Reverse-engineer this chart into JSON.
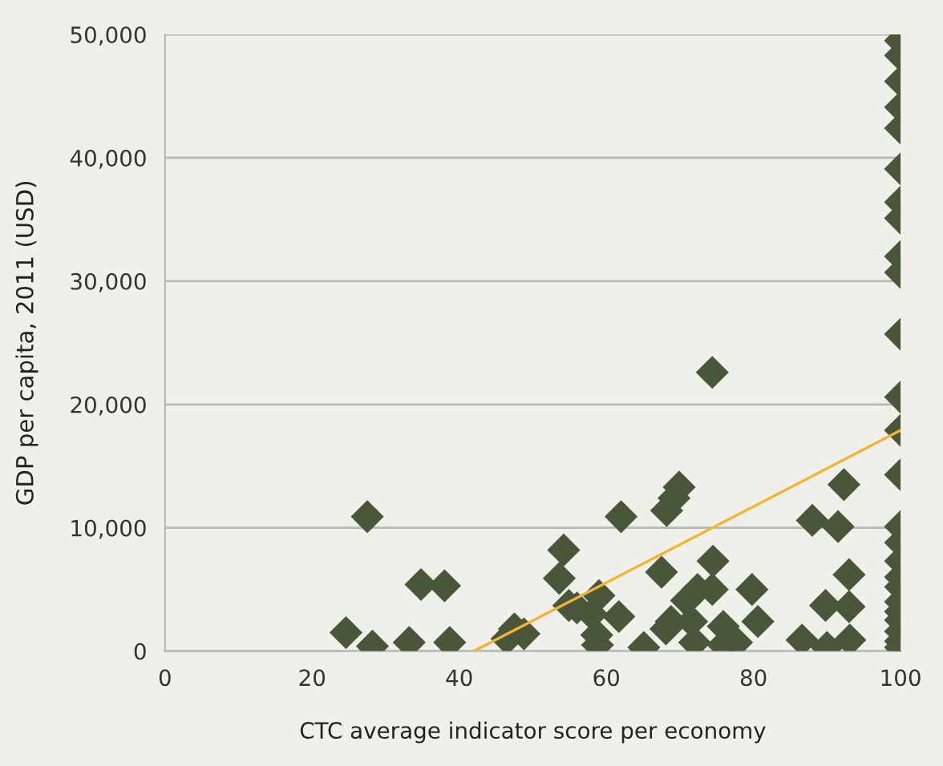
{
  "chart_data": {
    "type": "scatter",
    "xlabel": "CTC average indicator score per economy",
    "ylabel": "GDP per capita, 2011 (USD)",
    "xlim": [
      0,
      100
    ],
    "xticks": [
      0,
      20,
      40,
      60,
      80,
      100
    ],
    "ylim": [
      0,
      50000
    ],
    "yticks": [
      {
        "value": 0,
        "label": "0"
      },
      {
        "value": 10000,
        "label": "10,000"
      },
      {
        "value": 20000,
        "label": "20,000"
      },
      {
        "value": 30000,
        "label": "30,000"
      },
      {
        "value": 40000,
        "label": "40,000"
      },
      {
        "value": 50000,
        "label": "50,000"
      }
    ],
    "grid": "y",
    "series": [
      {
        "color": "#4a5639",
        "marker": "diamond",
        "x": [
          24.6,
          27.5,
          28.2,
          33.2,
          34.8,
          38.0,
          38.7,
          46.5,
          47.5,
          48.8,
          54.2,
          53.6,
          54.9,
          56.0,
          58.0,
          59.0,
          58.7,
          58.8,
          61.7,
          62.0,
          65.1,
          67.5,
          68.2,
          69.2,
          69.9,
          68.1,
          68.8,
          70.9,
          72.4,
          72.0,
          71.6,
          74.4,
          74.5,
          74.4,
          75.9,
          75.9,
          77.7,
          79.8,
          80.6,
          86.6,
          88.0,
          89.8,
          90.0,
          91.5,
          92.3,
          93.0,
          93.0,
          93.1,
          100,
          100,
          100,
          100,
          100,
          100,
          100,
          100,
          100,
          100,
          100,
          100,
          100,
          100,
          100,
          100,
          100,
          100,
          100,
          100,
          100,
          100,
          100,
          100,
          100
        ],
        "values": [
          1500,
          10900,
          400,
          700,
          5400,
          5300,
          700,
          1000,
          1800,
          1400,
          8200,
          5900,
          3700,
          3500,
          3000,
          4500,
          1300,
          500,
          2800,
          10900,
          300,
          6400,
          11400,
          12400,
          13300,
          1800,
          2400,
          4100,
          5000,
          700,
          2400,
          22600,
          7300,
          5000,
          2000,
          500,
          700,
          5000,
          2400,
          900,
          10600,
          3700,
          300,
          10100,
          13500,
          6200,
          3600,
          900,
          49500,
          48300,
          46200,
          44100,
          42400,
          39100,
          36400,
          35100,
          32000,
          30700,
          25700,
          20600,
          17900,
          14300,
          10100,
          8800,
          7300,
          6000,
          5200,
          4000,
          3200,
          2500,
          1600,
          800,
          300
        ]
      },
      {
        "type": "line",
        "color": "#f5b335",
        "x": [
          42,
          100
        ],
        "values": [
          0,
          17900
        ]
      }
    ]
  }
}
